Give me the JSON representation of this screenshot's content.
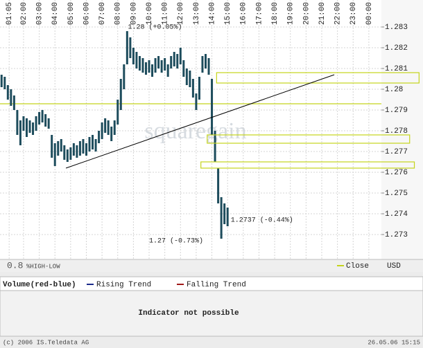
{
  "chart_data": {
    "type": "highlow",
    "watermark": "squaregain",
    "scale_label": "0.8",
    "mode_label": "%HIGH-LOW",
    "currency": "USD",
    "xlim": [
      0.5,
      24.8
    ],
    "ylim": [
      1.2718,
      1.2843
    ],
    "xticks": [
      {
        "value": 1.083,
        "label": "01:05"
      },
      {
        "value": 2,
        "label": "02:00"
      },
      {
        "value": 3,
        "label": "03:00"
      },
      {
        "value": 4,
        "label": "04:00"
      },
      {
        "value": 5,
        "label": "05:00"
      },
      {
        "value": 6,
        "label": "06:00"
      },
      {
        "value": 7,
        "label": "07:00"
      },
      {
        "value": 8,
        "label": "08:00"
      },
      {
        "value": 9,
        "label": "09:00"
      },
      {
        "value": 10,
        "label": "10:00"
      },
      {
        "value": 11,
        "label": "11:00"
      },
      {
        "value": 12,
        "label": "12:00"
      },
      {
        "value": 13,
        "label": "13:00"
      },
      {
        "value": 14,
        "label": "14:00"
      },
      {
        "value": 15,
        "label": "15:00"
      },
      {
        "value": 16,
        "label": "16:00"
      },
      {
        "value": 17,
        "label": "17:00"
      },
      {
        "value": 18,
        "label": "18:00"
      },
      {
        "value": 19,
        "label": "19:00"
      },
      {
        "value": 20,
        "label": "20:00"
      },
      {
        "value": 21,
        "label": "21:00"
      },
      {
        "value": 22,
        "label": "22:00"
      },
      {
        "value": 23,
        "label": "23:00"
      },
      {
        "value": 24,
        "label": "00:00"
      }
    ],
    "yticks": [
      1.283,
      1.282,
      1.281,
      1.28,
      1.279,
      1.278,
      1.277,
      1.276,
      1.275,
      1.274,
      1.273
    ],
    "grid": true,
    "color": "#1d4c5c",
    "x": [
      0.6,
      0.8,
      1.0,
      1.2,
      1.4,
      1.6,
      1.8,
      2.0,
      2.2,
      2.4,
      2.6,
      2.8,
      3.0,
      3.2,
      3.4,
      3.6,
      3.8,
      4.0,
      4.2,
      4.4,
      4.6,
      4.8,
      5.0,
      5.2,
      5.4,
      5.6,
      5.8,
      6.0,
      6.2,
      6.4,
      6.6,
      6.8,
      7.0,
      7.2,
      7.4,
      7.6,
      7.8,
      8.0,
      8.2,
      8.4,
      8.6,
      8.8,
      9.0,
      9.2,
      9.4,
      9.6,
      9.8,
      10.0,
      10.2,
      10.4,
      10.6,
      10.8,
      11.0,
      11.2,
      11.4,
      11.6,
      11.8,
      12.0,
      12.2,
      12.4,
      12.6,
      12.8,
      13.0,
      13.2,
      13.4,
      13.6,
      13.8,
      14.0,
      14.2,
      14.4,
      14.6,
      14.8,
      15.0
    ],
    "high": [
      1.2807,
      1.2806,
      1.2802,
      1.28,
      1.2797,
      1.279,
      1.2785,
      1.2787,
      1.2786,
      1.2785,
      1.2784,
      1.2787,
      1.2789,
      1.279,
      1.2788,
      1.2786,
      1.2778,
      1.2774,
      1.2775,
      1.2776,
      1.2773,
      1.2771,
      1.2772,
      1.2774,
      1.2773,
      1.2775,
      1.2776,
      1.2774,
      1.2777,
      1.2778,
      1.2776,
      1.278,
      1.2784,
      1.2786,
      1.2785,
      1.2782,
      1.2785,
      1.2795,
      1.2805,
      1.2812,
      1.2828,
      1.2825,
      1.282,
      1.2818,
      1.2816,
      1.2815,
      1.2813,
      1.2814,
      1.2812,
      1.2815,
      1.2816,
      1.2814,
      1.2815,
      1.2812,
      1.2816,
      1.2818,
      1.2817,
      1.282,
      1.2814,
      1.281,
      1.2809,
      1.2805,
      1.2798,
      1.2806,
      1.2816,
      1.2817,
      1.2815,
      1.2805,
      1.278,
      1.2762,
      1.2748,
      1.2745,
      1.2743
    ],
    "low": [
      1.2801,
      1.28,
      1.2795,
      1.2792,
      1.279,
      1.2778,
      1.2773,
      1.278,
      1.2777,
      1.2779,
      1.2778,
      1.278,
      1.2783,
      1.2784,
      1.2782,
      1.2781,
      1.2767,
      1.2763,
      1.2768,
      1.277,
      1.2766,
      1.2765,
      1.2766,
      1.2768,
      1.2767,
      1.2768,
      1.2769,
      1.2768,
      1.277,
      1.2771,
      1.277,
      1.2774,
      1.2776,
      1.2779,
      1.2778,
      1.2775,
      1.2778,
      1.2783,
      1.279,
      1.28,
      1.2812,
      1.2815,
      1.2812,
      1.281,
      1.2809,
      1.2808,
      1.2807,
      1.2808,
      1.2806,
      1.2808,
      1.281,
      1.2808,
      1.2809,
      1.2806,
      1.281,
      1.2811,
      1.281,
      1.2812,
      1.2806,
      1.2802,
      1.2801,
      1.2796,
      1.279,
      1.2795,
      1.2808,
      1.281,
      1.2807,
      1.2778,
      1.2765,
      1.2745,
      1.2728,
      1.2735,
      1.2734
    ],
    "close_line": {
      "name": "Close",
      "value": 1.2793,
      "color": "#c4d41a"
    },
    "trend_line": {
      "x": [
        4.7,
        21.8
      ],
      "y": [
        1.2762,
        1.2807
      ],
      "color": "#000000"
    },
    "zones": [
      {
        "x": [
          14.3,
          27.2
        ],
        "y": [
          1.2808,
          1.2803
        ]
      },
      {
        "x": [
          13.7,
          26.6
        ],
        "y": [
          1.2778,
          1.2774
        ]
      },
      {
        "x": [
          13.3,
          26.9
        ],
        "y": [
          1.2765,
          1.2762
        ]
      }
    ],
    "annotations": [
      {
        "text": "1.28 (+0.05%)",
        "x": 8.65,
        "y": 1.283
      },
      {
        "text": "1.2737 (-0.44%)",
        "x": 15.2,
        "y": 1.2737
      },
      {
        "text": "1.27 (-0.73%)",
        "x": 10.0,
        "y": 1.2727
      }
    ]
  },
  "volume_panel": {
    "title": "Volume(red-blue)",
    "legend": [
      "Rising Trend",
      "Falling Trend"
    ],
    "message": "Indicator not possible"
  },
  "footer": {
    "copyright": "(c) 2006 IS.Teledata AG",
    "timestamp": "26.05.06 15:15"
  }
}
